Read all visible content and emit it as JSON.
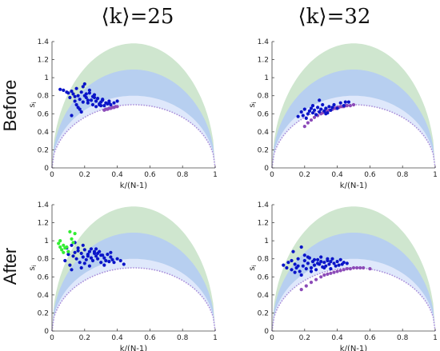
{
  "column_titles": [
    "⟨k⟩=25",
    "⟨k⟩=32"
  ],
  "row_titles": [
    "Before",
    "After"
  ],
  "colors": {
    "band_outer": "#cfe6cf",
    "band_mid": "#b7cff0",
    "band_inner": "#dfe8fb",
    "bound_curve": "#a98ad9",
    "points_blue": "#0a14c8",
    "points_purple": "#8c4bb8",
    "points_green": "#33ee33"
  },
  "chart_data": [
    {
      "type": "scatter",
      "panel": "Before, ⟨k⟩=25",
      "xlabel": "k/(N-1)",
      "ylabel": "s_i",
      "xlim": [
        0,
        1
      ],
      "ylim": [
        0,
        1.4
      ],
      "xticks": [
        "0",
        "0.2",
        "0.4",
        "0.6",
        "0.8",
        "1"
      ],
      "yticks": [
        "0",
        "0.2",
        "0.4",
        "0.6",
        "0.8",
        "1",
        "1.2",
        "1.4"
      ],
      "series": [
        {
          "color": "blue",
          "x": [
            0.05,
            0.07,
            0.09,
            0.1,
            0.12,
            0.13,
            0.14,
            0.15,
            0.16,
            0.17,
            0.18,
            0.19,
            0.2,
            0.21,
            0.22,
            0.23,
            0.24,
            0.25,
            0.26,
            0.27,
            0.28,
            0.29,
            0.3,
            0.31,
            0.32,
            0.33,
            0.34,
            0.35,
            0.36,
            0.38,
            0.4,
            0.11,
            0.15,
            0.19,
            0.23,
            0.27,
            0.31,
            0.35,
            0.17,
            0.21,
            0.25,
            0.29,
            0.14,
            0.18,
            0.22,
            0.26,
            0.3,
            0.12,
            0.16,
            0.2
          ],
          "y": [
            0.87,
            0.86,
            0.84,
            0.83,
            0.85,
            0.82,
            0.79,
            0.88,
            0.8,
            0.76,
            0.84,
            0.73,
            0.8,
            0.78,
            0.72,
            0.83,
            0.75,
            0.7,
            0.78,
            0.74,
            0.77,
            0.71,
            0.73,
            0.75,
            0.69,
            0.72,
            0.71,
            0.74,
            0.7,
            0.72,
            0.74,
            0.78,
            0.7,
            0.9,
            0.86,
            0.68,
            0.76,
            0.72,
            0.65,
            0.82,
            0.79,
            0.7,
            0.74,
            0.62,
            0.75,
            0.81,
            0.69,
            0.58,
            0.67,
            0.93
          ]
        },
        {
          "color": "purple",
          "x": [
            0.32,
            0.33,
            0.34,
            0.35,
            0.36,
            0.37,
            0.38,
            0.39,
            0.4
          ],
          "y": [
            0.64,
            0.65,
            0.65,
            0.66,
            0.66,
            0.67,
            0.67,
            0.68,
            0.68
          ]
        }
      ]
    },
    {
      "type": "scatter",
      "panel": "Before, ⟨k⟩=32",
      "xlabel": "k/(N-1)",
      "ylabel": "s_i",
      "xlim": [
        0,
        1
      ],
      "ylim": [
        0,
        1.4
      ],
      "xticks": [
        "0",
        "0.2",
        "0.4",
        "0.6",
        "0.8",
        "1"
      ],
      "yticks": [
        "0",
        "0.2",
        "0.4",
        "0.6",
        "0.8",
        "1",
        "1.2",
        "1.4"
      ],
      "series": [
        {
          "color": "blue",
          "x": [
            0.16,
            0.18,
            0.19,
            0.2,
            0.22,
            0.23,
            0.24,
            0.25,
            0.26,
            0.27,
            0.28,
            0.29,
            0.3,
            0.31,
            0.32,
            0.33,
            0.34,
            0.35,
            0.36,
            0.38,
            0.4,
            0.42,
            0.44,
            0.45,
            0.47,
            0.21,
            0.25,
            0.29,
            0.33,
            0.37
          ],
          "y": [
            0.57,
            0.62,
            0.58,
            0.65,
            0.6,
            0.63,
            0.66,
            0.61,
            0.64,
            0.59,
            0.67,
            0.62,
            0.65,
            0.7,
            0.63,
            0.66,
            0.61,
            0.68,
            0.64,
            0.7,
            0.66,
            0.72,
            0.69,
            0.73,
            0.73,
            0.55,
            0.69,
            0.75,
            0.6,
            0.67
          ]
        },
        {
          "color": "purple",
          "x": [
            0.2,
            0.22,
            0.24,
            0.26,
            0.28,
            0.3,
            0.31,
            0.32,
            0.33,
            0.34,
            0.35,
            0.36,
            0.37,
            0.38,
            0.39,
            0.4,
            0.41,
            0.42,
            0.43,
            0.44,
            0.45,
            0.46,
            0.48,
            0.5
          ],
          "y": [
            0.46,
            0.5,
            0.53,
            0.56,
            0.58,
            0.6,
            0.61,
            0.62,
            0.62,
            0.63,
            0.64,
            0.64,
            0.65,
            0.66,
            0.66,
            0.67,
            0.67,
            0.68,
            0.68,
            0.68,
            0.69,
            0.69,
            0.69,
            0.7
          ]
        }
      ]
    },
    {
      "type": "scatter",
      "panel": "After, ⟨k⟩=25",
      "xlabel": "k/(N-1)",
      "ylabel": "s_i",
      "xlim": [
        0,
        1
      ],
      "ylim": [
        0,
        1.4
      ],
      "xticks": [
        "0",
        "0.2",
        "0.4",
        "0.6",
        "0.8",
        "1"
      ],
      "yticks": [
        "0",
        "0.2",
        "0.4",
        "0.6",
        "0.8",
        "1",
        "1.2",
        "1.4"
      ],
      "series": [
        {
          "color": "blue",
          "x": [
            0.08,
            0.09,
            0.1,
            0.11,
            0.12,
            0.13,
            0.14,
            0.15,
            0.16,
            0.17,
            0.18,
            0.19,
            0.2,
            0.21,
            0.22,
            0.23,
            0.24,
            0.25,
            0.26,
            0.27,
            0.28,
            0.29,
            0.3,
            0.31,
            0.32,
            0.33,
            0.34,
            0.35,
            0.36,
            0.37,
            0.38,
            0.4,
            0.42,
            0.44,
            0.12,
            0.16,
            0.2,
            0.24,
            0.28,
            0.32,
            0.36,
            0.18,
            0.22,
            0.26,
            0.3,
            0.14,
            0.1,
            0.19,
            0.23,
            0.27
          ],
          "y": [
            0.78,
            0.92,
            0.85,
            0.73,
            0.95,
            0.83,
            0.98,
            0.8,
            0.89,
            0.76,
            0.86,
            0.82,
            0.9,
            0.79,
            0.85,
            0.88,
            0.81,
            0.78,
            0.86,
            0.83,
            0.8,
            0.88,
            0.76,
            0.84,
            0.81,
            0.78,
            0.85,
            0.77,
            0.82,
            0.79,
            0.76,
            0.8,
            0.78,
            0.74,
            0.68,
            0.92,
            0.75,
            0.91,
            0.86,
            0.73,
            0.87,
            0.7,
            0.83,
            0.88,
            0.84,
            0.87,
            0.88,
            0.95,
            0.72,
            0.91
          ]
        },
        {
          "color": "green",
          "x": [
            0.04,
            0.05,
            0.06,
            0.07,
            0.08,
            0.1,
            0.11,
            0.12,
            0.13,
            0.14,
            0.05,
            0.07,
            0.09
          ],
          "y": [
            0.97,
            0.93,
            0.9,
            0.95,
            0.92,
            0.88,
            1.1,
            1.02,
            0.98,
            1.08,
            1.0,
            0.87,
            0.93
          ]
        }
      ]
    },
    {
      "type": "scatter",
      "panel": "After, ⟨k⟩=32",
      "xlabel": "k/(N-1)",
      "ylabel": "s_i",
      "xlim": [
        0,
        1
      ],
      "ylim": [
        0,
        1.4
      ],
      "xticks": [
        "0",
        "0.2",
        "0.4",
        "0.6",
        "0.8",
        "1"
      ],
      "yticks": [
        "0",
        "0.2",
        "0.4",
        "0.6",
        "0.8",
        "1",
        "1.2",
        "1.4"
      ],
      "series": [
        {
          "color": "blue",
          "x": [
            0.07,
            0.09,
            0.1,
            0.12,
            0.13,
            0.14,
            0.15,
            0.16,
            0.17,
            0.18,
            0.19,
            0.2,
            0.21,
            0.22,
            0.23,
            0.24,
            0.25,
            0.26,
            0.27,
            0.28,
            0.29,
            0.3,
            0.31,
            0.32,
            0.33,
            0.34,
            0.35,
            0.36,
            0.37,
            0.38,
            0.39,
            0.4,
            0.41,
            0.42,
            0.43,
            0.44,
            0.46,
            0.12,
            0.16,
            0.2,
            0.24,
            0.28,
            0.32,
            0.36,
            0.18,
            0.22,
            0.26,
            0.3,
            0.14,
            0.34
          ],
          "y": [
            0.73,
            0.7,
            0.76,
            0.68,
            0.88,
            0.74,
            0.7,
            0.8,
            0.66,
            0.93,
            0.72,
            0.78,
            0.69,
            0.75,
            0.81,
            0.7,
            0.77,
            0.73,
            0.68,
            0.79,
            0.74,
            0.82,
            0.71,
            0.76,
            0.72,
            0.78,
            0.74,
            0.69,
            0.8,
            0.75,
            0.72,
            0.77,
            0.73,
            0.79,
            0.74,
            0.76,
            0.75,
            0.78,
            0.72,
            0.84,
            0.66,
            0.75,
            0.7,
            0.77,
            0.62,
            0.82,
            0.79,
            0.77,
            0.65,
            0.8
          ]
        },
        {
          "color": "purple",
          "x": [
            0.18,
            0.21,
            0.24,
            0.27,
            0.3,
            0.32,
            0.34,
            0.36,
            0.38,
            0.4,
            0.42,
            0.44,
            0.46,
            0.48,
            0.5,
            0.52,
            0.54,
            0.56,
            0.6
          ],
          "y": [
            0.46,
            0.5,
            0.54,
            0.57,
            0.6,
            0.62,
            0.63,
            0.64,
            0.65,
            0.66,
            0.67,
            0.68,
            0.69,
            0.69,
            0.7,
            0.7,
            0.7,
            0.7,
            0.69
          ]
        }
      ]
    }
  ]
}
